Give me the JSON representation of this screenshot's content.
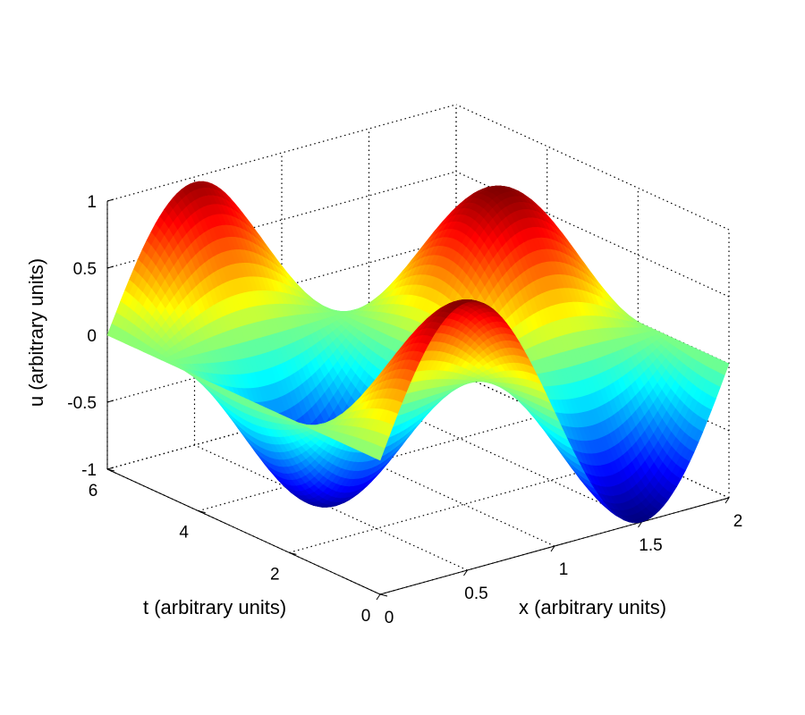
{
  "chart_data": {
    "type": "surface",
    "function": "u = sin(pi*x) * cos(t)",
    "xlabel": "x (arbitrary units)",
    "ylabel": "t (arbitrary units)",
    "zlabel": "u (arbitrary units)",
    "xlim": [
      0,
      2
    ],
    "ylim": [
      0,
      6
    ],
    "zlim": [
      -1,
      1
    ],
    "xticks": [
      "0",
      "0.5",
      "1",
      "1.5",
      "2"
    ],
    "yticks": [
      "0",
      "2",
      "4",
      "6"
    ],
    "zticks": [
      "-1",
      "-0.5",
      "0",
      "0.5",
      "1"
    ],
    "grid": true,
    "colormap": "jet",
    "sample_points": [
      {
        "x": 0.5,
        "t": 0,
        "u": 1.0
      },
      {
        "x": 1.5,
        "t": 0,
        "u": -1.0
      },
      {
        "x": 1.0,
        "t": 0,
        "u": 0.0
      },
      {
        "x": 0.5,
        "t": 6,
        "u": 0.96
      },
      {
        "x": 1.5,
        "t": 6,
        "u": -0.96
      }
    ]
  }
}
